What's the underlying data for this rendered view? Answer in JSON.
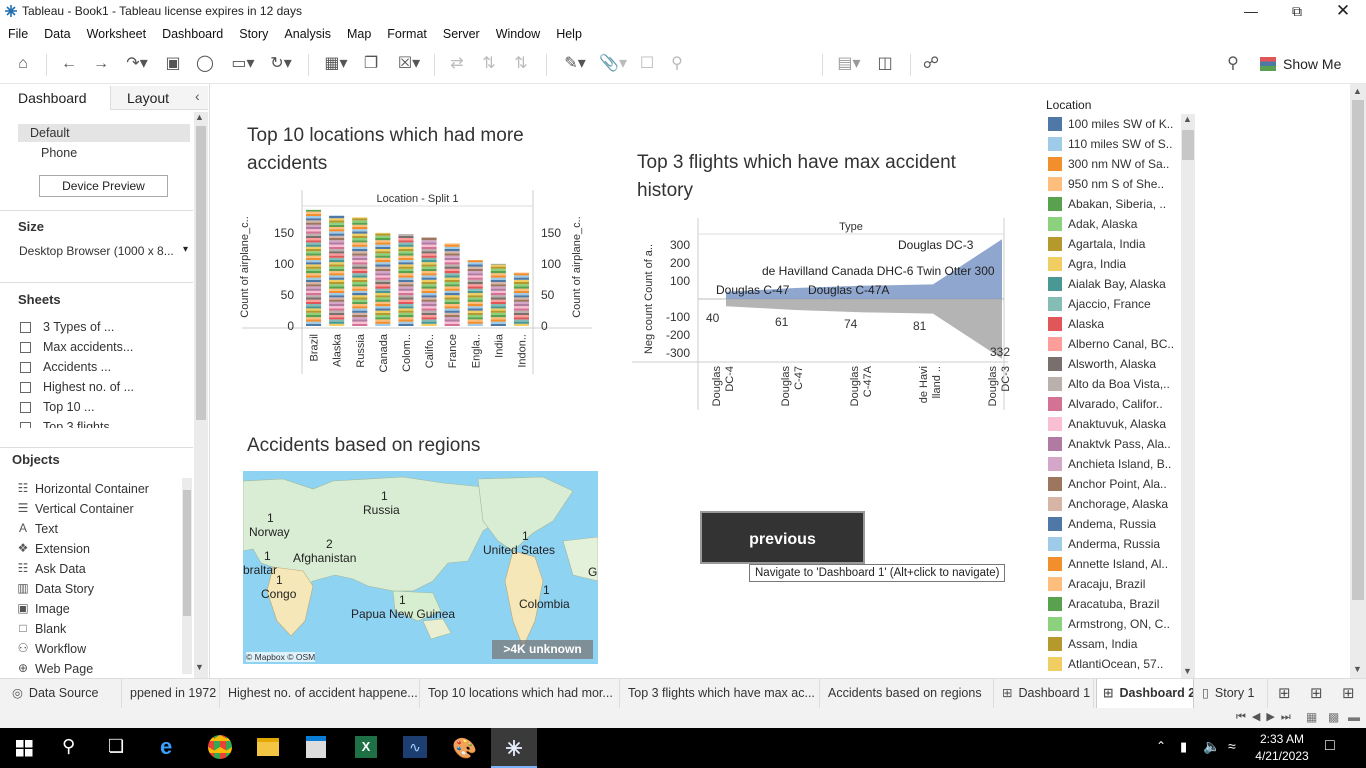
{
  "window": {
    "title": "Tableau - Book1 - Tableau license expires in 12 days"
  },
  "menu": [
    "File",
    "Data",
    "Worksheet",
    "Dashboard",
    "Story",
    "Analysis",
    "Map",
    "Format",
    "Server",
    "Window",
    "Help"
  ],
  "toolbar": {
    "show_me": "Show Me"
  },
  "left_panel": {
    "tabs": [
      "Dashboard",
      "Layout"
    ],
    "devices": [
      "Default",
      "Phone"
    ],
    "device_preview": "Device Preview",
    "size_label": "Size",
    "size_value": "Desktop Browser (1000 x 8...",
    "sheets_label": "Sheets",
    "sheets": [
      "3 Types of ...",
      "Max accidents...",
      "Accidents ...",
      "Highest no. of ...",
      "Top 10 ...",
      "Top 3 flights"
    ],
    "objects_label": "Objects",
    "objects": [
      {
        "label": "Horizontal Container",
        "icon": "horizontal-container-icon"
      },
      {
        "label": "Vertical Container",
        "icon": "vertical-container-icon"
      },
      {
        "label": "Text",
        "icon": "text-icon"
      },
      {
        "label": "Extension",
        "icon": "extension-icon"
      },
      {
        "label": "Ask Data",
        "icon": "ask-data-icon"
      },
      {
        "label": "Data Story",
        "icon": "data-story-icon"
      },
      {
        "label": "Image",
        "icon": "image-icon"
      },
      {
        "label": "Blank",
        "icon": "blank-icon"
      },
      {
        "label": "Workflow",
        "icon": "workflow-icon"
      },
      {
        "label": "Web Page",
        "icon": "web-page-icon"
      }
    ]
  },
  "dashboard": {
    "chart1_title": "Top 10 locations which had more accidents",
    "chart2_title": "Top 3 flights which have max accident history",
    "map_title": "Accidents based on regions",
    "previous_button": "previous",
    "tooltip": "Navigate to 'Dashboard 1' (Alt+click to navigate)",
    "map_attribution": "© Mapbox © OSM",
    "map_unknown": ">4K unknown",
    "map_labels": [
      {
        "name": "Russia",
        "count": "1"
      },
      {
        "name": "Norway",
        "count": "1"
      },
      {
        "name": "Afghanistan",
        "count": "2"
      },
      {
        "name": "braltar",
        "count": "1"
      },
      {
        "name": "Congo",
        "count": "1"
      },
      {
        "name": "Papua New Guinea",
        "count": "1"
      },
      {
        "name": "United States",
        "count": "1"
      },
      {
        "name": "Colombia",
        "count": "1"
      },
      {
        "name": "Gi",
        "count": ""
      }
    ]
  },
  "chart_data": [
    {
      "type": "bar",
      "title": "Top 10 locations which had more accidents",
      "header": "Location - Split 1",
      "ylabel": "Count of airplane_c..",
      "categories": [
        "Brazil",
        "Alaska",
        "Russia",
        "Canada",
        "Colom..",
        "Califo..",
        "France",
        "Engla..",
        "India",
        "Indon.."
      ],
      "values": [
        187,
        178,
        175,
        150,
        148,
        143,
        133,
        106,
        100,
        86
      ],
      "yticks": [
        "0",
        "50",
        "100",
        "150"
      ],
      "ylim": [
        0,
        190
      ],
      "stacked": true
    },
    {
      "type": "area",
      "title": "Top 3 flights which have max accident history",
      "header": "Type",
      "ylabel": "Neg count Count of a..",
      "categories": [
        "Douglas DC-4",
        "Douglas C-47",
        "Douglas C-47A",
        "de Havi lland ..",
        "Douglas DC-3"
      ],
      "tick_labels": [
        "Douglas\nDC-4",
        "Douglas\nC-47",
        "Douglas\nC-47A",
        "de Havi\nlland ..",
        "Douglas\nDC-3"
      ],
      "values_pos": [
        40,
        61,
        74,
        81,
        332
      ],
      "values_neg": [
        -40,
        -61,
        -74,
        -81,
        -332
      ],
      "value_labels": [
        "40",
        "61",
        "74",
        "81",
        "332"
      ],
      "annotations": [
        "Douglas C-47",
        "Douglas C-47A",
        "de Havilland Canada DHC-6 Twin Otter 300",
        "Douglas DC-3"
      ],
      "yticks": [
        "-300",
        "-200",
        "-100",
        "100",
        "200",
        "300"
      ],
      "ylim": [
        -350,
        350
      ]
    }
  ],
  "legend": {
    "title": "Location",
    "items": [
      {
        "label": "100 miles SW of K..",
        "color": "#4e79a7"
      },
      {
        "label": "110 miles SW of S..",
        "color": "#a0cbe8"
      },
      {
        "label": "300 nm NW of Sa..",
        "color": "#f28e2b"
      },
      {
        "label": "950 nm S of She..",
        "color": "#ffbe7d"
      },
      {
        "label": "Abakan, Siberia, ..",
        "color": "#59a14f"
      },
      {
        "label": "Adak, Alaska",
        "color": "#8cd17d"
      },
      {
        "label": "Agartala, India",
        "color": "#b6992d"
      },
      {
        "label": "Agra, India",
        "color": "#f1ce63"
      },
      {
        "label": "Aialak Bay, Alaska",
        "color": "#499894"
      },
      {
        "label": "Ajaccio, France",
        "color": "#86bcb6"
      },
      {
        "label": "Alaska",
        "color": "#e15759"
      },
      {
        "label": "Alberno Canal, BC..",
        "color": "#ff9d9a"
      },
      {
        "label": "Alsworth, Alaska",
        "color": "#79706e"
      },
      {
        "label": "Alto da Boa Vista,..",
        "color": "#bab0ac"
      },
      {
        "label": "Alvarado, Califor..",
        "color": "#d37295"
      },
      {
        "label": "Anaktuvuk, Alaska",
        "color": "#fabfd2"
      },
      {
        "label": "Anaktvk Pass, Ala..",
        "color": "#b07aa1"
      },
      {
        "label": "Anchieta Island, B..",
        "color": "#d4a6c8"
      },
      {
        "label": "Anchor Point, Ala..",
        "color": "#9d7660"
      },
      {
        "label": "Anchorage, Alaska",
        "color": "#d7b5a6"
      },
      {
        "label": "Andema, Russia",
        "color": "#4e79a7"
      },
      {
        "label": "Anderma, Russia",
        "color": "#a0cbe8"
      },
      {
        "label": "Annette Island, Al..",
        "color": "#f28e2b"
      },
      {
        "label": "Aracaju, Brazil",
        "color": "#ffbe7d"
      },
      {
        "label": "Aracatuba, Brazil",
        "color": "#59a14f"
      },
      {
        "label": "Armstrong, ON, C..",
        "color": "#8cd17d"
      },
      {
        "label": "Assam, India",
        "color": "#b6992d"
      },
      {
        "label": "AtlantiOcean, 57..",
        "color": "#f1ce63"
      }
    ]
  },
  "tabs": [
    "Data Source",
    "ppened in 1972",
    "Highest no. of accident happene...",
    "Top 10 locations which had mor...",
    "Top 3 flights which have max ac...",
    "Accidents based on regions",
    "Dashboard 1",
    "Dashboard 2",
    "Story 1"
  ],
  "taskbar": {
    "time": "2:33 AM",
    "date": "4/21/2023"
  }
}
